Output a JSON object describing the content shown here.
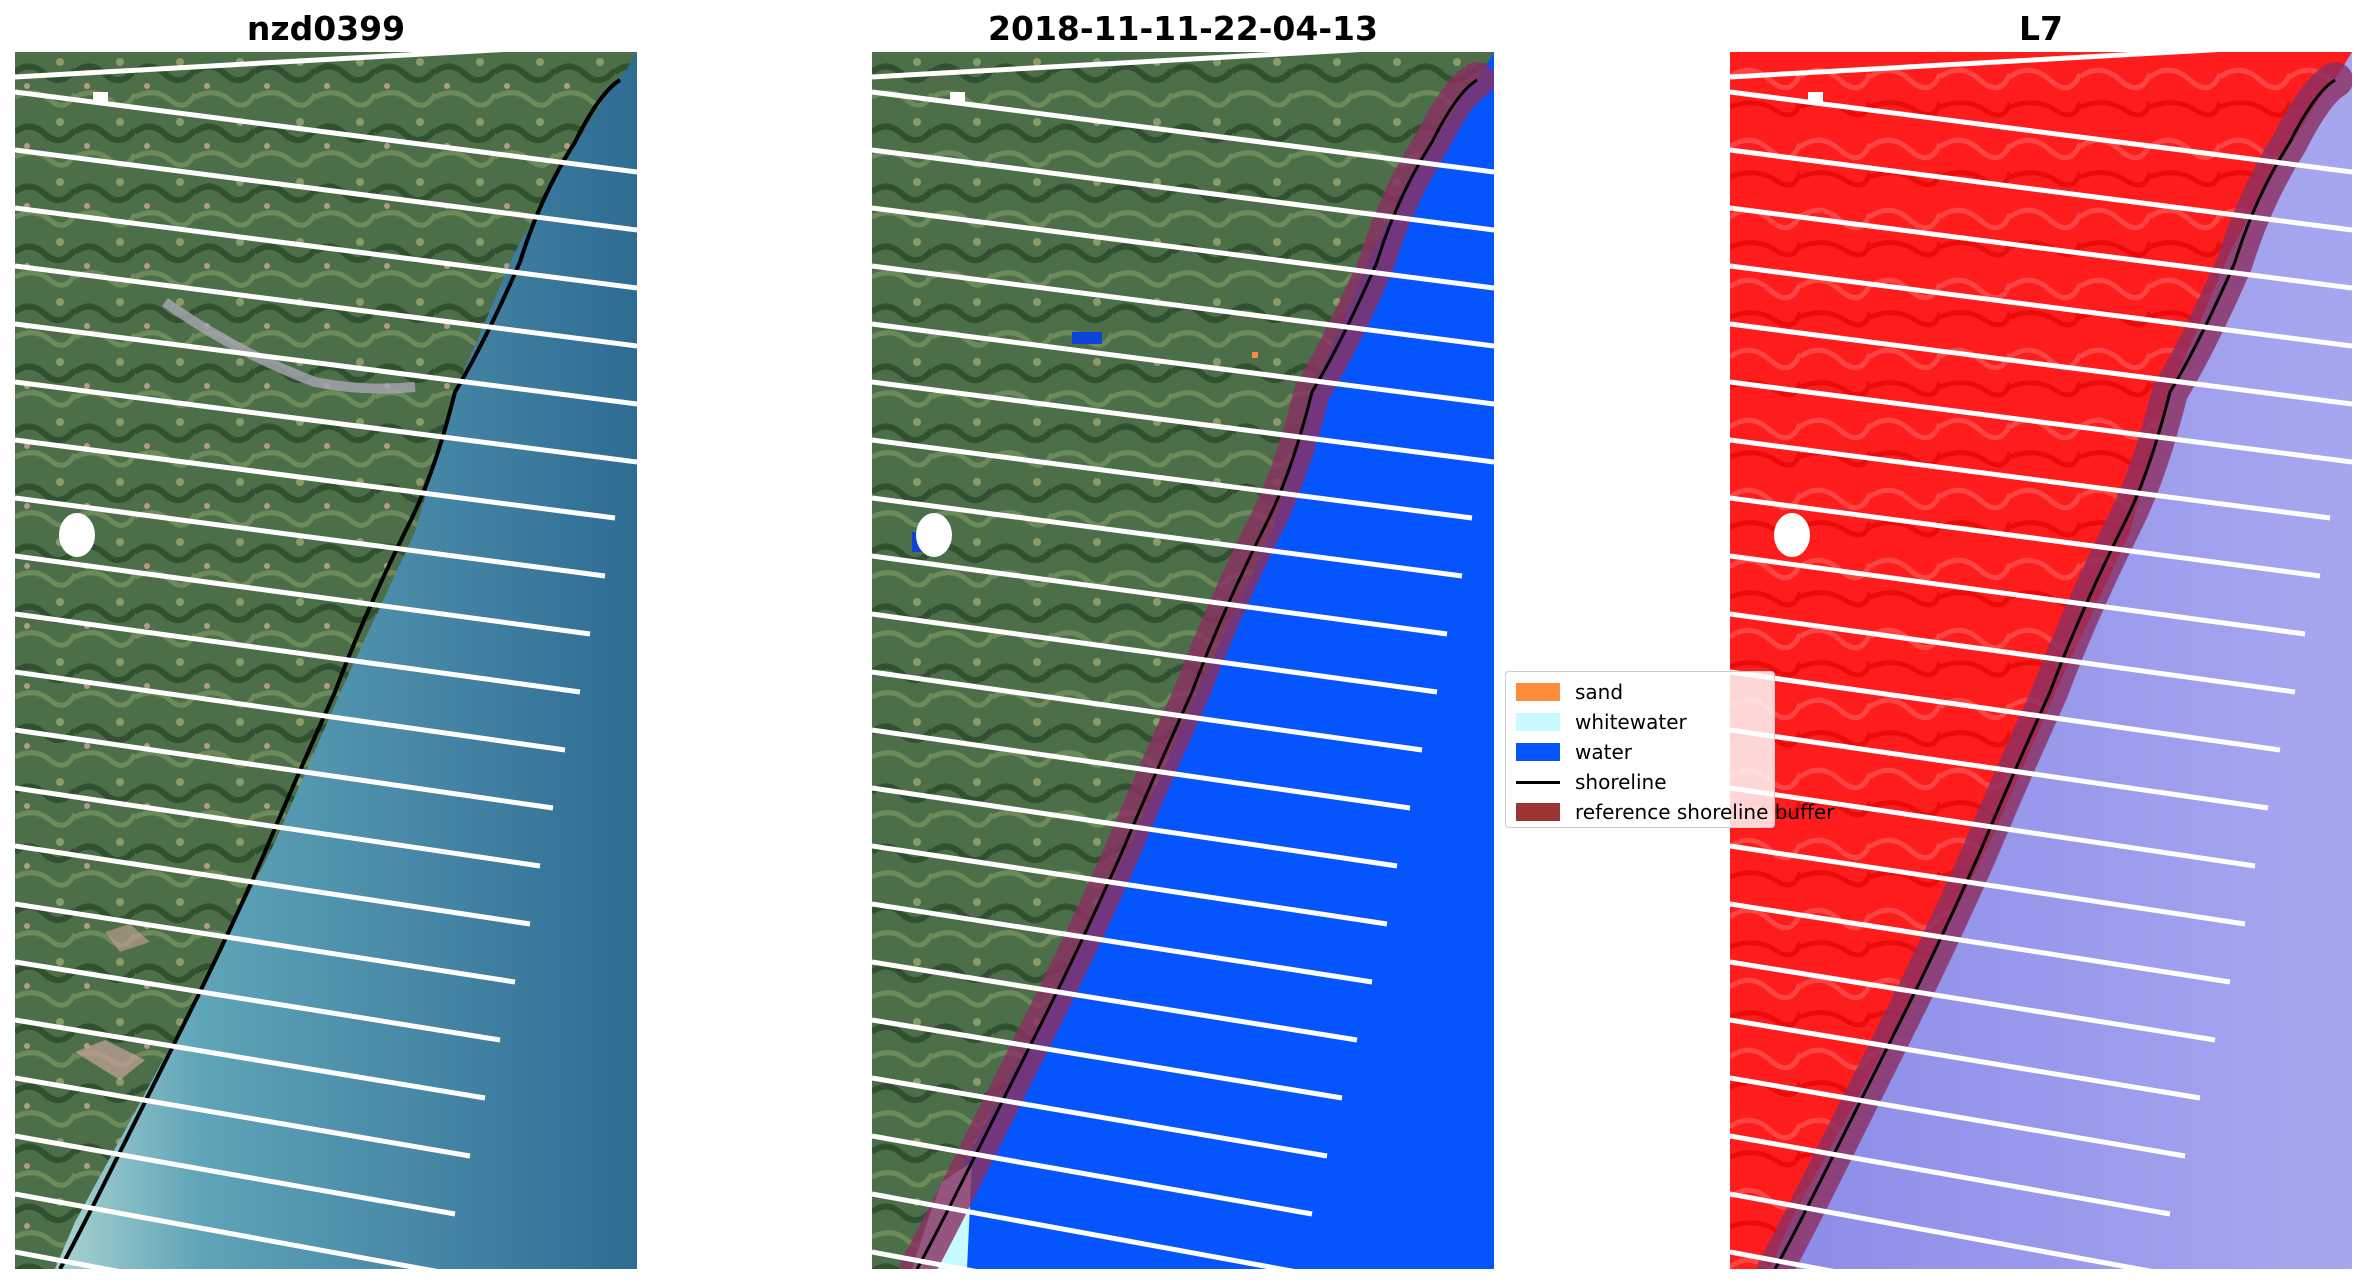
{
  "panels": [
    {
      "title": "nzd0399"
    },
    {
      "title": "2018-11-11-22-04-13"
    },
    {
      "title": "L7"
    }
  ],
  "legend": {
    "items": [
      {
        "label": "sand",
        "color": "#ff8c3a",
        "kind": "patch"
      },
      {
        "label": "whitewater",
        "color": "#c8fbff",
        "kind": "patch"
      },
      {
        "label": "water",
        "color": "#0555ff",
        "kind": "patch"
      },
      {
        "label": "shoreline",
        "color": "#000000",
        "kind": "line"
      },
      {
        "label": "reference shoreline buffer",
        "color": "#9b3535",
        "kind": "patch"
      }
    ]
  },
  "colors": {
    "land": "#4a6e48",
    "sea_rgb": "#4a89a6",
    "water_class": "#0555ff",
    "whitewater_class": "#c8fbff",
    "mndwi_land": "#ff1a1a",
    "mndwi_water": "#9898ee",
    "buffer": "#8b2f63",
    "scan_gap": "#ffffff",
    "shoreline": "#000000"
  }
}
